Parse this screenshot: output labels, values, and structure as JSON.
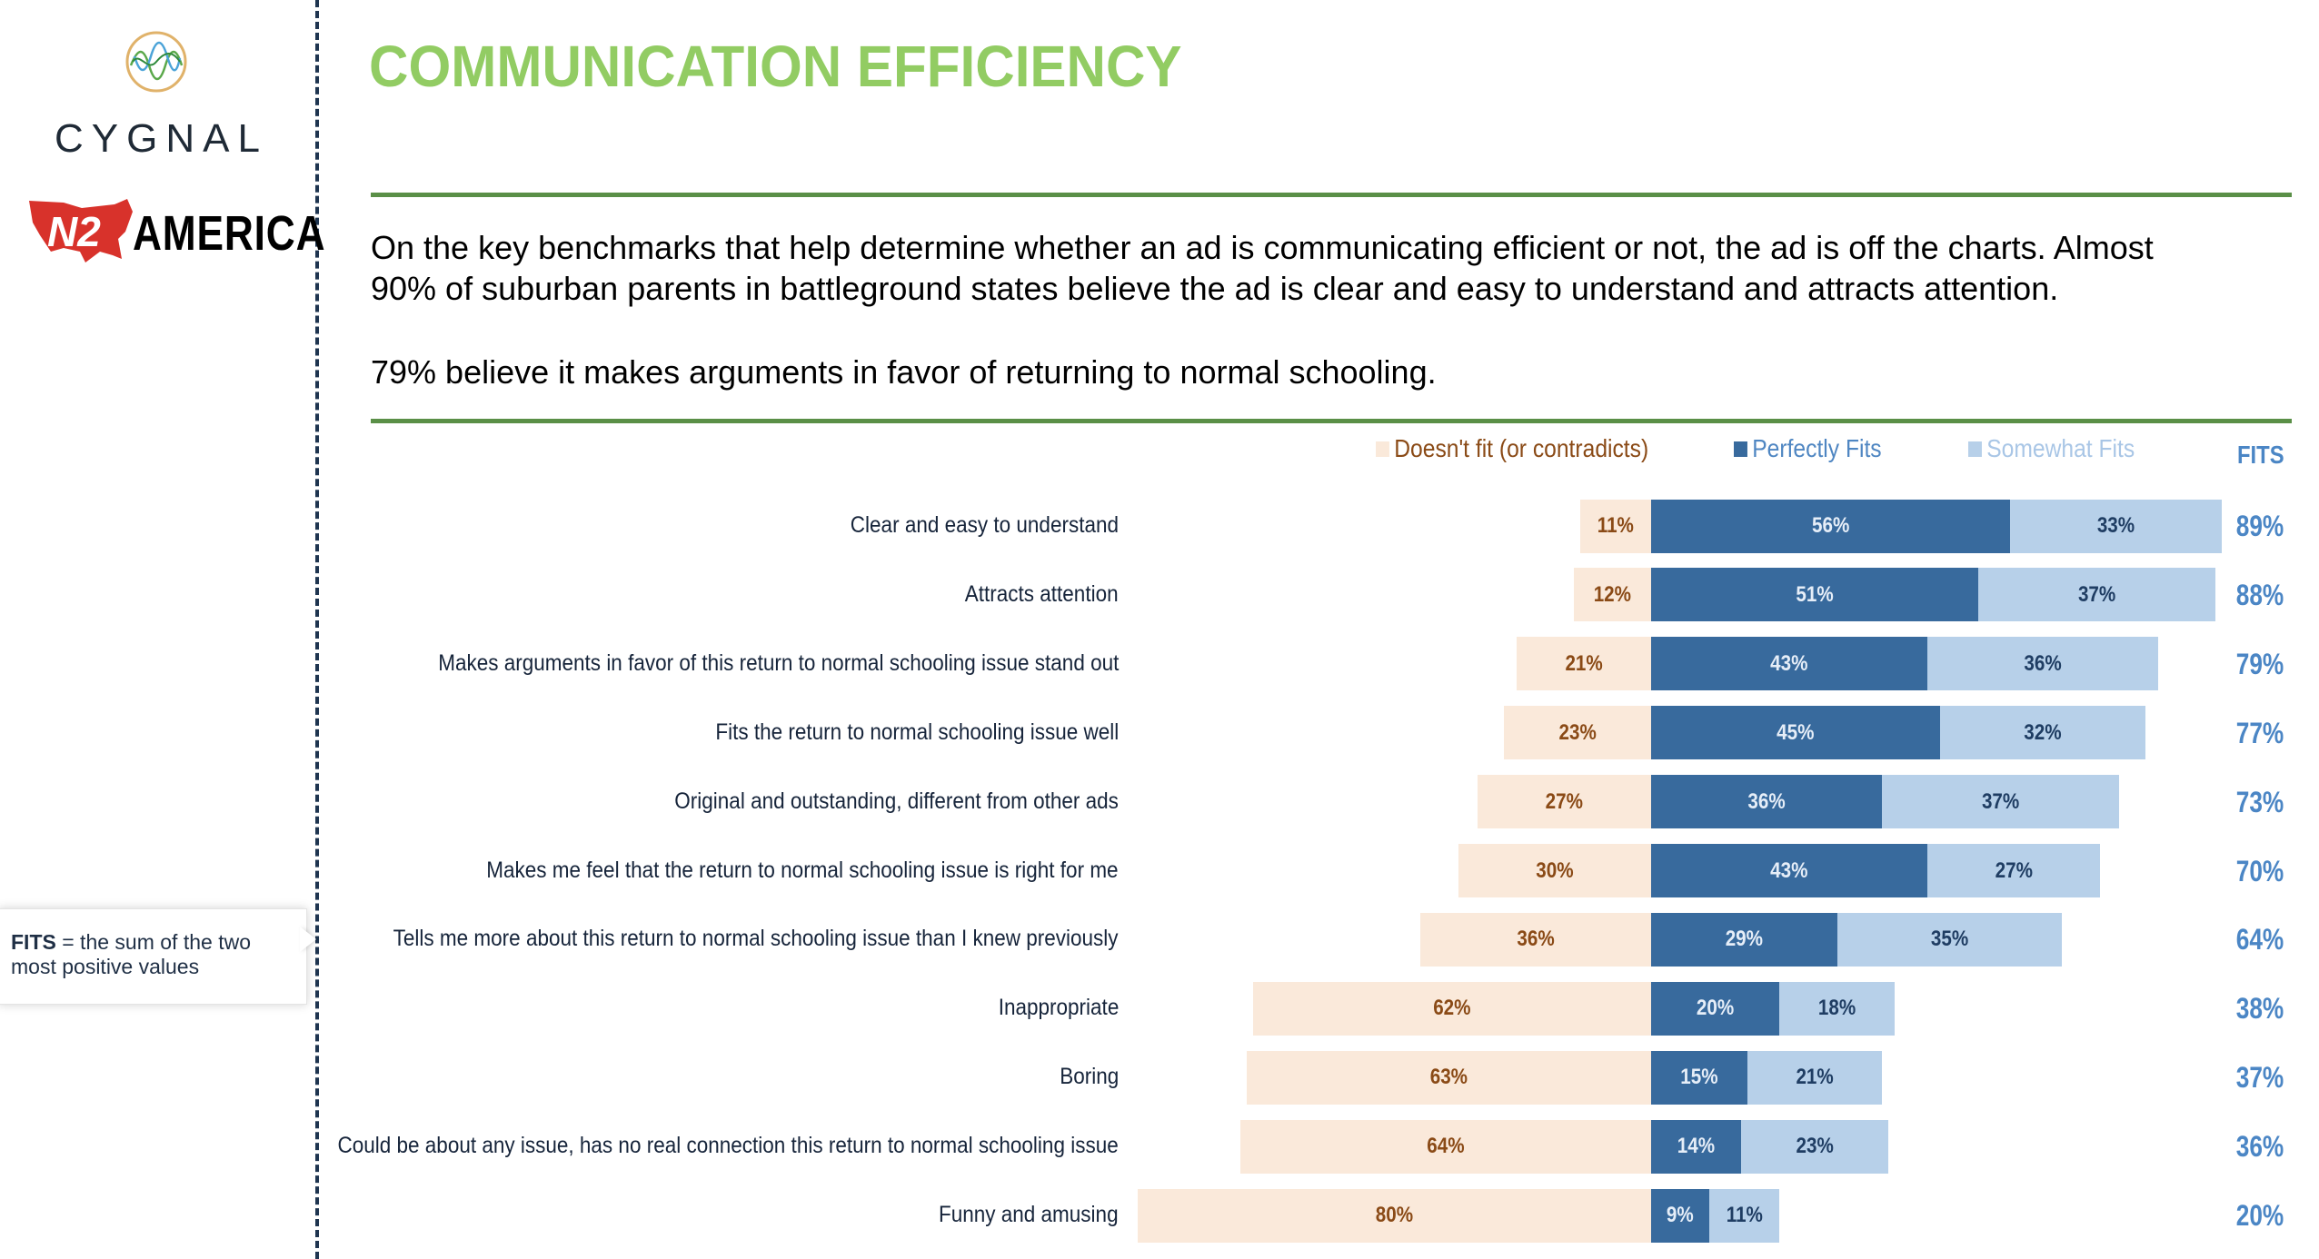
{
  "logos": {
    "cygnal_wordmark": "CYGNAL",
    "n2_mark": "N2",
    "n2_wordmark": "AMERICA",
    "cygnal_icon": "wave-circle-logo-icon",
    "n2_icon": "us-map-logo-icon"
  },
  "callout": {
    "term": "FITS",
    "definition": " = the sum of the two most positive values"
  },
  "header": {
    "title": "COMMUNICATION EFFICIENCY",
    "paragraph1_line1": "On the key benchmarks that help determine whether an ad is communicating efficient or not, the ad is off the charts. Almost",
    "paragraph1_line2": "90% of suburban parents in battleground states believe the ad is clear and easy to understand and attracts attention.",
    "paragraph2": "79% believe it makes arguments in favor of returning to normal schooling."
  },
  "colors": {
    "title_green": "#92cc63",
    "rule_green": "#5a8f47",
    "doesnt_fit": "#fae9da",
    "doesnt_fit_text": "#8a4a16",
    "perfectly_fits": "#386a9d",
    "perfectly_fits_text": "#e6eef8",
    "somewhat_fits": "#b7d0e9",
    "somewhat_fits_text": "#1f3d63",
    "fits_total": "#4b86c5",
    "legend_perfect_text": "#4f86c2",
    "legend_somewhat_text": "#a9c6e6"
  },
  "chart_data": {
    "type": "bar",
    "orientation": "horizontal-diverging-stacked",
    "title": "",
    "xlabel": "",
    "ylabel": "",
    "legend": [
      "Doesn't fit (or contradicts)",
      "Perfectly Fits",
      "Somewhat Fits"
    ],
    "legend_position": "top",
    "total_column_header": "FITS",
    "categories": [
      "Clear and easy to understand",
      "Attracts attention",
      "Makes arguments in favor of this return to normal schooling issue stand out",
      "Fits the return to normal schooling issue well",
      "Original and outstanding, different from other ads",
      "Makes me feel that the return to normal schooling issue is right for me",
      "Tells me more about this return to normal schooling issue than I knew previously",
      "Inappropriate",
      "Boring",
      "Could be about any issue, has no real connection this return to normal schooling issue",
      "Funny and amusing"
    ],
    "series": [
      {
        "name": "Doesn't fit (or contradicts)",
        "direction": "left",
        "values": [
          11,
          12,
          21,
          23,
          27,
          30,
          36,
          62,
          63,
          64,
          80
        ]
      },
      {
        "name": "Perfectly Fits",
        "direction": "right",
        "values": [
          56,
          51,
          43,
          45,
          36,
          43,
          29,
          20,
          15,
          14,
          9
        ]
      },
      {
        "name": "Somewhat Fits",
        "direction": "right",
        "values": [
          33,
          37,
          36,
          32,
          37,
          27,
          35,
          18,
          21,
          23,
          11
        ]
      }
    ],
    "fits_totals": [
      89,
      88,
      79,
      77,
      73,
      70,
      64,
      38,
      37,
      36,
      20
    ],
    "value_format": "{v}%",
    "xlim": [
      -80,
      90
    ],
    "grid": false
  }
}
